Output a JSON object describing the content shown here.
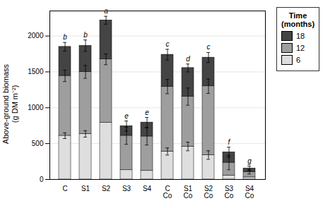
{
  "chart_data": {
    "type": "bar",
    "stacked": true,
    "categories": [
      "C",
      "S1",
      "S2",
      "S3",
      "S4",
      "C\nCo",
      "S1\nCo",
      "S2\nCo",
      "S3\nCo",
      "S4\nCo"
    ],
    "series": [
      {
        "name": "6",
        "color": "#dedede",
        "values": [
          610,
          635,
          790,
          130,
          120,
          390,
          460,
          340,
          55,
          30
        ],
        "errors": [
          40,
          45,
          0,
          0,
          0,
          50,
          60,
          60,
          0,
          0
        ]
      },
      {
        "name": "12",
        "color": "#9e9e9e",
        "values": [
          835,
          865,
          885,
          480,
          480,
          905,
          695,
          960,
          180,
          75
        ],
        "errors": [
          80,
          90,
          75,
          120,
          120,
          100,
          120,
          100,
          100,
          30
        ]
      },
      {
        "name": "18",
        "color": "#444444",
        "values": [
          405,
          365,
          545,
          135,
          195,
          445,
          400,
          400,
          145,
          50
        ],
        "errors": [
          60,
          80,
          55,
          70,
          70,
          75,
          55,
          70,
          70,
          30
        ]
      }
    ],
    "letters": [
      "b",
      "b",
      "a",
      "e",
      "e",
      "c",
      "d",
      "c",
      "f",
      "g"
    ],
    "ylabel": "Above-ground biomass\n(g DM m⁻²)",
    "legend_title": "Time\n(months)",
    "ylim": [
      0,
      2350
    ],
    "yticks": [
      0,
      500,
      1000,
      1500,
      2000
    ],
    "grid": true,
    "legend": "right"
  }
}
